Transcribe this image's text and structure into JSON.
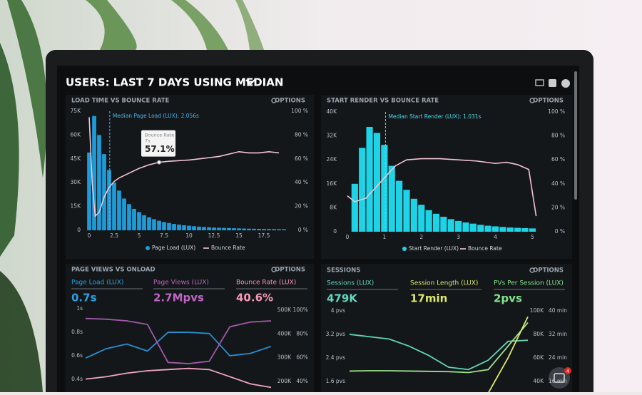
{
  "title": "USERS: LAST 7 DAYS USING MEDIAN",
  "notification_count": 4,
  "panels": [
    {
      "title": "LOAD TIME VS BOUNCE RATE",
      "options": "OPTIONS",
      "chart": {
        "type": "histogram",
        "bar_name": "Page Load (LUX)",
        "color": "#1e9ad6",
        "bins": [
          -0.25,
          0.25,
          0.75,
          1.25,
          1.75,
          2.25,
          2.75,
          3.25,
          3.75,
          4.25,
          4.75,
          5.25,
          5.75,
          6.25,
          6.75,
          7.25,
          7.75,
          8.25,
          8.75,
          9.25,
          9.75,
          10.25,
          10.75,
          11.25,
          11.75,
          12.25,
          12.75,
          13.25,
          13.75,
          14.25,
          14.75,
          15.25,
          15.75,
          16.25,
          16.75,
          17.25,
          17.75,
          18.25,
          18.75,
          19.25,
          19.75
        ],
        "values": [
          49000,
          72000,
          60000,
          48000,
          38000,
          30000,
          25000,
          20000,
          16500,
          13500,
          11500,
          9500,
          8200,
          7000,
          6000,
          5200,
          4600,
          4000,
          3600,
          3200,
          2900,
          2600,
          2300,
          2100,
          1900,
          1700,
          1600,
          1500,
          1400,
          1300,
          1200,
          1100,
          1000,
          950,
          900,
          850,
          800,
          750,
          700,
          650
        ],
        "xlim": [
          -0.36,
          20
        ],
        "xticks": [
          0,
          2.5,
          5,
          7.5,
          10,
          12.5,
          15,
          17.5
        ],
        "ylim": [
          0,
          75000
        ],
        "yticks": [
          0,
          {
            "value": 15000,
            "label": "15K"
          },
          {
            "value": 30000,
            "label": "30K"
          },
          {
            "value": 45000,
            "label": "45K"
          },
          {
            "value": 60000,
            "label": "60K"
          },
          {
            "value": 75000,
            "label": "75K"
          }
        ],
        "y2lim": [
          0,
          100
        ],
        "y2ticks": [
          {
            "value": 0,
            "label": "0 %"
          },
          {
            "value": 20,
            "label": "20 %"
          },
          {
            "value": 40,
            "label": "40 %"
          },
          {
            "value": 60,
            "label": "60 %"
          },
          {
            "value": 80,
            "label": "80 %"
          },
          {
            "value": 100,
            "label": "100 %"
          }
        ],
        "line": {
          "name": "Bounce Rate",
          "color": "#f5c4d3",
          "axis": "y2",
          "x": [
            0,
            0.3,
            0.6,
            1,
            1.5,
            2,
            2.5,
            3,
            4,
            5,
            6,
            7,
            8,
            9,
            10,
            11,
            12,
            13,
            14,
            15,
            16,
            17,
            18,
            19
          ],
          "values": [
            95,
            40,
            12,
            15,
            28,
            36,
            41,
            44,
            48,
            52,
            55,
            57.1,
            58,
            58.5,
            59,
            60,
            61,
            62,
            64,
            66,
            65,
            65,
            66,
            65
          ]
        },
        "median": {
          "value": 2.056,
          "label": "Median Page Load (LUX): 2.056s"
        },
        "tooltip": {
          "title": "Bounce Rate",
          "x": 7,
          "x_label": "7s",
          "value": 57.1,
          "value_label": "57.1%"
        }
      }
    },
    {
      "title": "START RENDER VS BOUNCE RATE",
      "options": "OPTIONS",
      "chart": {
        "type": "histogram",
        "bar_name": "Start Render (LUX)",
        "color": "#1fd3e6",
        "bins": [
          0.1,
          0.3,
          0.5,
          0.7,
          0.9,
          1.1,
          1.3,
          1.5,
          1.7,
          1.9,
          2.1,
          2.3,
          2.5,
          2.7,
          2.9,
          3.1,
          3.3,
          3.5,
          3.7,
          3.9,
          4.1,
          4.3,
          4.5,
          4.7,
          4.9,
          5.1
        ],
        "values": [
          16000,
          28000,
          35000,
          33000,
          29000,
          22000,
          17000,
          14000,
          11000,
          9000,
          7200,
          6000,
          5000,
          4200,
          3600,
          3100,
          2700,
          2300,
          2000,
          1800,
          1600,
          1400,
          1300,
          1200,
          1100
        ],
        "xlim": [
          -0.23,
          5.3
        ],
        "xticks": [
          0,
          1,
          2,
          3,
          4,
          5
        ],
        "ylim": [
          0,
          40000
        ],
        "yticks": [
          0,
          {
            "value": 8000,
            "label": "8K"
          },
          {
            "value": 16000,
            "label": "16K"
          },
          {
            "value": 24000,
            "label": "24K"
          },
          {
            "value": 32000,
            "label": "32K"
          },
          {
            "value": 40000,
            "label": "40K"
          }
        ],
        "y2lim": [
          0,
          100
        ],
        "y2ticks": [
          {
            "value": 0,
            "label": "0 %"
          },
          {
            "value": 20,
            "label": "20 %"
          },
          {
            "value": 40,
            "label": "40 %"
          },
          {
            "value": 60,
            "label": "60 %"
          },
          {
            "value": 80,
            "label": "80 %"
          },
          {
            "value": 100,
            "label": "100 %"
          }
        ],
        "line": {
          "name": "Bounce Rate",
          "color": "#f5c4d3",
          "axis": "y2",
          "x": [
            0,
            0.2,
            0.5,
            0.8,
            1,
            1.3,
            1.6,
            2,
            2.5,
            3,
            3.5,
            4,
            4.3,
            4.6,
            4.9,
            5.1
          ],
          "values": [
            30,
            25,
            28,
            38,
            45,
            55,
            60,
            61,
            61,
            60,
            59,
            57,
            58,
            56,
            52,
            13
          ]
        },
        "median": {
          "value": 1.031,
          "label": "Median Start Render (LUX): 1.031s"
        }
      }
    },
    {
      "title": "PAGE VIEWS VS ONLOAD",
      "options": "OPTIONS",
      "kpis": [
        {
          "label": "Page Load (LUX)",
          "value": "0.7s"
        },
        {
          "label": "Page Views (LUX)",
          "value": "2.7Mpvs"
        },
        {
          "label": "Bounce Rate (LUX)",
          "value": "40.6%"
        }
      ],
      "chart": {
        "type": "line",
        "categories": [
          null,
          null,
          null,
          null,
          null,
          null,
          null,
          null,
          null,
          null
        ],
        "ylim": [
          0.32,
          1.08
        ],
        "yticks": [
          {
            "value": 1,
            "label": "1s"
          },
          {
            "value": 0.8,
            "label": "0.8s"
          },
          {
            "value": 0.6,
            "label": "0.6s"
          },
          {
            "value": 0.4,
            "label": "0.4s"
          }
        ],
        "y2lim": [
          170000,
          545000
        ],
        "y2ticks": [
          {
            "value": 500000,
            "label": "500K"
          },
          {
            "value": 400000,
            "label": "400K"
          },
          {
            "value": 300000,
            "label": "300K"
          },
          {
            "value": 200000,
            "label": "200K"
          }
        ],
        "y3lim": [
          34,
          109
        ],
        "y3ticks": [
          {
            "value": 100,
            "label": "100%"
          },
          {
            "value": 80,
            "label": "80%"
          },
          {
            "value": 60,
            "label": "60%"
          },
          {
            "value": 40,
            "label": "40%"
          }
        ],
        "series": [
          {
            "color": "#2a8fd0",
            "axis": "y",
            "values": [
              0.58,
              0.66,
              0.7,
              0.64,
              0.8,
              0.8,
              0.79,
              0.6,
              0.62,
              0.68
            ]
          },
          {
            "color": "#a05aa8",
            "axis": "y2",
            "values": [
              465000,
              462000,
              455000,
              440000,
              280000,
              275000,
              285000,
              430000,
              450000,
              455000
            ]
          },
          {
            "color": "#f2a6c0",
            "axis": "y3",
            "values": [
              42,
              44,
              47,
              49,
              50,
              51,
              50,
              44,
              38,
              35
            ]
          }
        ]
      }
    },
    {
      "title": "SESSIONS",
      "options": "OPTIONS",
      "kpis": [
        {
          "label": "Sessions (LUX)",
          "value": "479K"
        },
        {
          "label": "Session Length (LUX)",
          "value": "17min"
        },
        {
          "label": "PVs Per Session (LUX)",
          "value": "2pvs"
        }
      ],
      "chart": {
        "type": "line",
        "categories": [
          null,
          null,
          null,
          null,
          null,
          null,
          null,
          null,
          null,
          null
        ],
        "ylim": [
          1.28,
          4.39
        ],
        "yticks": [
          {
            "value": 4,
            "label": "4 pvs"
          },
          {
            "value": 3.2,
            "label": "3.2 pvs"
          },
          {
            "value": 2.4,
            "label": "2.4 pvs"
          },
          {
            "value": 1.6,
            "label": "1.6 pvs"
          }
        ],
        "y2lim": [
          32000,
          109700
        ],
        "y2ticks": [
          {
            "value": 100000,
            "label": "100K"
          },
          {
            "value": 80000,
            "label": "80K"
          },
          {
            "value": 60000,
            "label": "60K"
          },
          {
            "value": 40000,
            "label": "40K"
          }
        ],
        "y3lim": [
          12.8,
          43.9
        ],
        "y3ticks": [
          {
            "value": 40,
            "label": "40 min"
          },
          {
            "value": 32,
            "label": "32 min"
          },
          {
            "value": 24,
            "label": "24 min"
          },
          {
            "value": 16,
            "label": "16 min"
          }
        ],
        "series": [
          {
            "color": "#62d6b4",
            "axis": "y2",
            "values": [
              80000,
              78000,
              76000,
              70000,
              62000,
              52000,
              50000,
              58000,
              74000,
              75000
            ]
          },
          {
            "color": "#9be28c",
            "axis": "y",
            "values": [
              1.95,
              1.96,
              1.96,
              1.95,
              1.94,
              1.93,
              1.9,
              2.0,
              2.8,
              3.6
            ]
          },
          {
            "color": "#dfe86a",
            "axis": "y3",
            "values": [
              null,
              null,
              null,
              null,
              null,
              null,
              null,
              12,
              24,
              38
            ]
          }
        ]
      }
    }
  ]
}
